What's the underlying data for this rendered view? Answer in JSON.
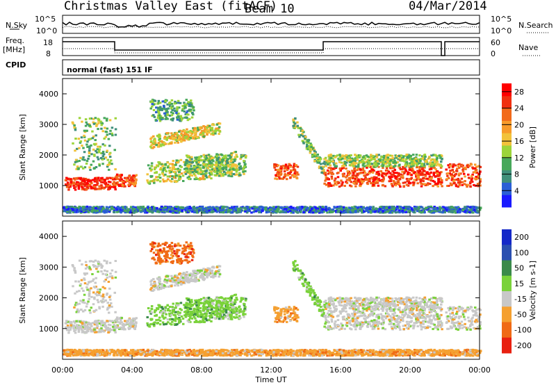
{
  "header": {
    "station": "Christmas Valley East (fitACF)",
    "beam": "Beam 10",
    "date": "04/Mar/2014"
  },
  "status_panels": {
    "nsky_label": "N.Sky",
    "nsky_ticks": [
      "10^5",
      "10^0"
    ],
    "nsearch_label": "N.Search",
    "freq_label_1": "Freq.",
    "freq_label_2": "[MHz]",
    "freq_ticks": [
      "18",
      "8"
    ],
    "nave_label": "Nave",
    "nave_ticks": [
      "60",
      "0"
    ],
    "cpid_label": "CPID",
    "cpid_value": "normal (fast) 151 IF"
  },
  "chart_data": [
    {
      "type": "heatmap",
      "title": "",
      "ylabel": "Slant Range [km]",
      "xlabel": "",
      "x_ticks": [
        "00:00",
        "04:00",
        "08:00",
        "12:00",
        "16:00",
        "20:00",
        "00:00"
      ],
      "y_ticks": [
        1000,
        2000,
        3000,
        4000
      ],
      "ylim": [
        0,
        4500
      ],
      "colorbar": {
        "label": "Power [dB]",
        "ticks": [
          4,
          8,
          12,
          16,
          20,
          24,
          28
        ],
        "range": [
          0,
          30
        ],
        "colors": [
          "#1a1aff",
          "#2a5fd6",
          "#3f8f7a",
          "#47a85a",
          "#9cd43a",
          "#f2c23a",
          "#f79a2a",
          "#f26a1a",
          "#f03010",
          "#ff0000"
        ]
      }
    },
    {
      "type": "heatmap",
      "title": "",
      "ylabel": "Slant Range [km]",
      "xlabel": "Time UT",
      "x_ticks": [
        "00:00",
        "04:00",
        "08:00",
        "12:00",
        "16:00",
        "20:00",
        "00:00"
      ],
      "y_ticks": [
        1000,
        2000,
        3000,
        4000
      ],
      "ylim": [
        0,
        4500
      ],
      "colorbar": {
        "label": "Velocity [m s-1]",
        "tick_labels": [
          "200",
          "100",
          "50",
          "15",
          "-15",
          "-50",
          "-100",
          "-200"
        ],
        "colors": [
          "#1428c8",
          "#2a4fb0",
          "#3a8a4a",
          "#7ad23a",
          "#c8c8c8",
          "#f5a030",
          "#f06a15",
          "#e82010"
        ]
      }
    }
  ]
}
